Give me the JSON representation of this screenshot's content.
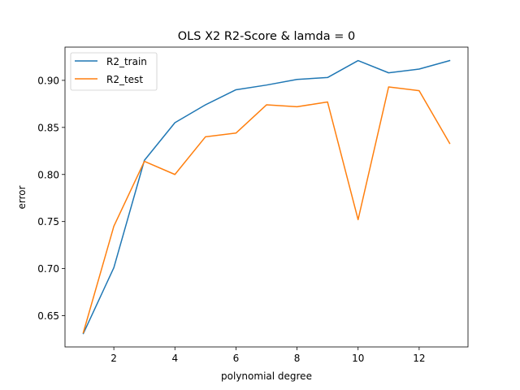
{
  "chart_data": {
    "type": "line",
    "title": "OLS X2 R2-Score & lamda = 0",
    "xlabel": "polynomial degree",
    "ylabel": "error",
    "x": [
      1,
      2,
      3,
      4,
      5,
      6,
      7,
      8,
      9,
      10,
      11,
      12,
      13
    ],
    "xlim": [
      0.4,
      13.6
    ],
    "ylim": [
      0.6168,
      0.9353
    ],
    "xticks": [
      2,
      4,
      6,
      8,
      10,
      12
    ],
    "yticks": [
      0.65,
      0.7,
      0.75,
      0.8,
      0.85,
      0.9
    ],
    "ytick_labels": [
      "0.65",
      "0.70",
      "0.75",
      "0.80",
      "0.85",
      "0.90"
    ],
    "grid": false,
    "legend_position": "top-left",
    "series": [
      {
        "name": "R2_train",
        "color": "#1f77b4",
        "values": [
          0.631,
          0.701,
          0.815,
          0.855,
          0.874,
          0.89,
          0.895,
          0.901,
          0.903,
          0.921,
          0.908,
          0.912,
          0.921
        ]
      },
      {
        "name": "R2_test",
        "color": "#ff7f0e",
        "values": [
          0.632,
          0.745,
          0.814,
          0.8,
          0.84,
          0.844,
          0.874,
          0.872,
          0.877,
          0.752,
          0.893,
          0.889,
          0.833
        ]
      }
    ]
  }
}
